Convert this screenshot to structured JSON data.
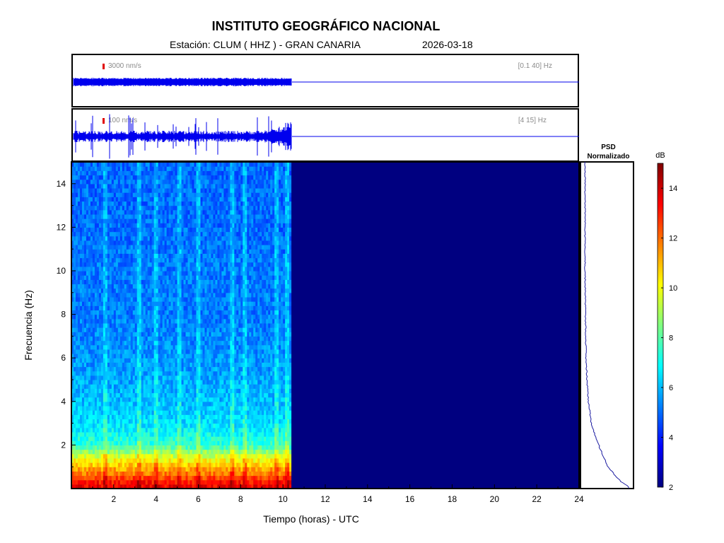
{
  "header": {
    "title": "INSTITUTO GEOGRÁFICO NACIONAL",
    "station": "Estación:  CLUM ( HHZ ) - GRAN CANARIA",
    "date": "2026-03-18"
  },
  "trace1": {
    "scale": "3000 nm/s",
    "band": "[0.1 40] Hz"
  },
  "trace2": {
    "scale": "100 nm/s",
    "band": "[4 15] Hz"
  },
  "psd": {
    "title_line1": "PSD",
    "title_line2": "Normalizado"
  },
  "colorbar": {
    "unit": "dB",
    "ticks": [
      2,
      4,
      6,
      8,
      10,
      12,
      14
    ],
    "range": [
      2,
      15
    ],
    "colormap": "jet"
  },
  "chart_data": {
    "type": "heatmap",
    "xlabel": "Tiempo (horas) - UTC",
    "ylabel": "Frecuencia  (Hz)",
    "xlim": [
      0,
      24
    ],
    "ylim": [
      0,
      15
    ],
    "x_ticks": [
      2,
      4,
      6,
      8,
      10,
      12,
      14,
      16,
      18,
      20,
      22,
      24
    ],
    "y_ticks": [
      2,
      4,
      6,
      8,
      10,
      12,
      14
    ],
    "data_end_hour": 10.4,
    "approx_db_by_frequency": {
      "frequency_hz": [
        0.2,
        0.5,
        1.0,
        1.5,
        2,
        3,
        4,
        6,
        8,
        10,
        12,
        14
      ],
      "db": [
        13.5,
        12.5,
        11,
        9.5,
        7.5,
        6.5,
        6,
        5.5,
        5.2,
        5.2,
        5.0,
        5.0
      ]
    },
    "empty_region_db": 2,
    "psd_normalized": {
      "frequency_hz": [
        0.1,
        0.3,
        0.5,
        0.8,
        1.0,
        1.5,
        2,
        2.5,
        3,
        4,
        5,
        6,
        8,
        10,
        12,
        14,
        15
      ],
      "value": [
        0.95,
        0.8,
        0.7,
        0.6,
        0.52,
        0.42,
        0.33,
        0.25,
        0.18,
        0.12,
        0.09,
        0.07,
        0.06,
        0.05,
        0.05,
        0.05,
        0.05
      ]
    }
  }
}
